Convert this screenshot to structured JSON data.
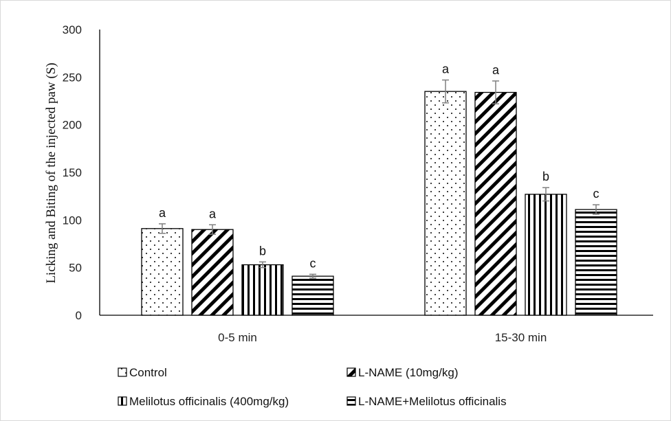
{
  "chart_data": {
    "type": "bar",
    "title": "",
    "xlabel": "",
    "ylabel": "Licking and Biting of the injected paw (S)",
    "ylim": [
      0,
      300
    ],
    "yticks": [
      0,
      50,
      100,
      150,
      200,
      250,
      300
    ],
    "categories": [
      "0-5 min",
      "15-30 min"
    ],
    "grid": false,
    "legend_position": "bottom",
    "series": [
      {
        "name": "Control",
        "pattern": "dots",
        "values": [
          91,
          235
        ],
        "errors": [
          5,
          12
        ],
        "labels": [
          "a",
          "a"
        ]
      },
      {
        "name": "L-NAME (10mg/kg)",
        "pattern": "diagonal",
        "values": [
          90,
          234
        ],
        "errors": [
          5,
          12
        ],
        "labels": [
          "a",
          "a"
        ]
      },
      {
        "name": "Melilotus officinalis (400mg/kg)",
        "pattern": "vertical",
        "values": [
          53,
          127
        ],
        "errors": [
          3,
          7
        ],
        "labels": [
          "b",
          "b"
        ]
      },
      {
        "name": "L-NAME+Melilotus officinalis",
        "pattern": "horizontal",
        "values": [
          41,
          111
        ],
        "errors": [
          2,
          5
        ],
        "labels": [
          "c",
          "c"
        ]
      }
    ],
    "colors": {
      "axis": "#000000",
      "error_bar": "#7f7f7f",
      "bar_fill": "#ffffff",
      "bar_stroke": "#000000"
    }
  }
}
